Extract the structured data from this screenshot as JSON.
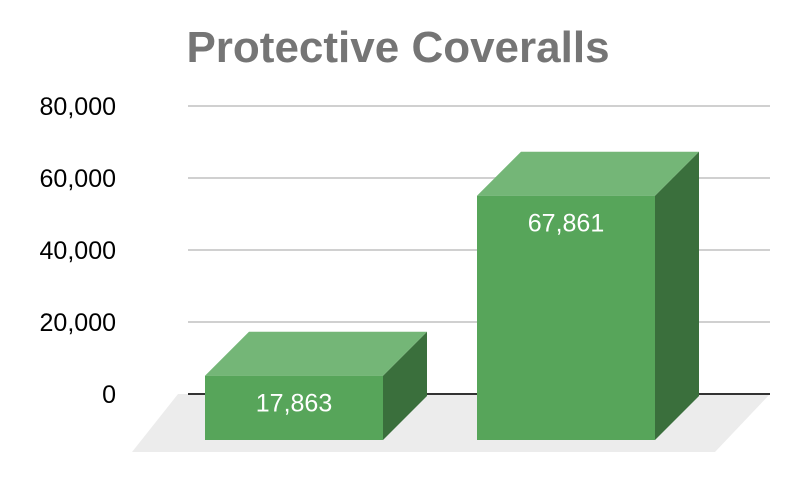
{
  "chart_data": {
    "type": "bar",
    "title": "Protective Coveralls",
    "categories": [
      "",
      ""
    ],
    "values": [
      17863,
      67861
    ],
    "data_labels": [
      "17,863",
      "67,861"
    ],
    "ylim": [
      0,
      80000
    ],
    "yticks": [
      0,
      20000,
      40000,
      60000,
      80000
    ],
    "ytick_labels": [
      "0",
      "20,000",
      "40,000",
      "60,000",
      "80,000"
    ],
    "xlabel": "",
    "ylabel": "",
    "grid": true,
    "legend": "none",
    "style": "3d",
    "colors": {
      "bar_front": "#57a55a",
      "bar_top": "#74b677",
      "bar_side": "#3a6f3c",
      "floor": "#ececec",
      "title": "#757575"
    }
  }
}
